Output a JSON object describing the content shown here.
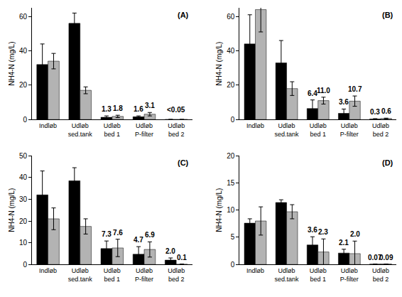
{
  "chart_data": [
    {
      "type": "bar",
      "title": "(A)",
      "y_label": "NH4-N (mg/L)",
      "categories": [
        "Indløb",
        "Udløb\nsed.tank",
        "Udløb\nbed 1",
        "Udløb\nP-filter",
        "Udløb\nbed 2"
      ],
      "series": [
        {
          "color": "#000000",
          "values": [
            32,
            56,
            1.3,
            1.6,
            0.03
          ],
          "errors": [
            12,
            6,
            0.8,
            0.5,
            null
          ],
          "value_labels": [
            null,
            null,
            "1.3",
            "1.6",
            null
          ]
        },
        {
          "color": "#b3b3b3",
          "values": [
            34,
            17,
            1.8,
            3.1,
            0.03
          ],
          "errors": [
            4.5,
            2,
            0.7,
            1,
            null
          ],
          "value_labels": [
            null,
            null,
            "1.8",
            "3.1",
            null
          ]
        }
      ],
      "annotations": [
        {
          "category": "Udløb\nbed 2",
          "text": "<0.05"
        }
      ],
      "ylim": [
        0,
        65
      ],
      "yticks": [
        0,
        20,
        40,
        60
      ],
      "data_labels": true
    },
    {
      "type": "bar",
      "title": "(B)",
      "y_label": "NH4-N (mg/L)",
      "categories": [
        "Indløb",
        "Udløb\nsed.tank",
        "Udløb\nbed 1",
        "Udløb\nP-filter",
        "Udløb\nbed 2"
      ],
      "series": [
        {
          "color": "#000000",
          "values": [
            44,
            33,
            6.4,
            3.6,
            0.3
          ],
          "errors": [
            17,
            13,
            5,
            2.5,
            0.2
          ],
          "value_labels": [
            null,
            null,
            "6.4",
            "3.6",
            "0.3"
          ]
        },
        {
          "color": "#b3b3b3",
          "values": [
            64,
            18,
            11.0,
            10.7,
            0.6
          ],
          "errors": [
            13,
            4,
            2,
            3,
            0.2
          ],
          "value_labels": [
            null,
            null,
            "11.0",
            "10.7",
            "0.6"
          ]
        }
      ],
      "ylim": [
        0,
        65
      ],
      "yticks": [
        0,
        20,
        40,
        60
      ],
      "data_labels": true
    },
    {
      "type": "bar",
      "title": "(C)",
      "y_label": "NH4-N (mg/L)",
      "categories": [
        "Indløb",
        "Udløb\nsed.tank",
        "Udløb\nbed 1",
        "Udløb\nP-filter",
        "Udløb\nbed 2"
      ],
      "series": [
        {
          "color": "#000000",
          "values": [
            32,
            38.5,
            7.3,
            4.7,
            2.0
          ],
          "errors": [
            11,
            6,
            3.5,
            3.5,
            1
          ],
          "value_labels": [
            null,
            null,
            "7.3",
            "4.7",
            "2.0"
          ]
        },
        {
          "color": "#b3b3b3",
          "values": [
            21,
            17.5,
            7.6,
            6.9,
            0.1
          ],
          "errors": [
            5,
            3.5,
            4,
            3.5,
            0.1
          ],
          "value_labels": [
            null,
            null,
            "7.6",
            "6.9",
            "0.1"
          ]
        }
      ],
      "ylim": [
        0,
        50
      ],
      "yticks": [
        0,
        10,
        20,
        30,
        40,
        50
      ],
      "data_labels": true
    },
    {
      "type": "bar",
      "title": "(D)",
      "y_label": "NH4-N (mg/L)",
      "categories": [
        "Indløb",
        "Udløb\nsed.tank",
        "Udløb\nbed 1",
        "Udløb\nP-filter",
        "Udløb\nbed 2"
      ],
      "series": [
        {
          "color": "#000000",
          "values": [
            7.6,
            11.4,
            3.6,
            2.1,
            0.07
          ],
          "errors": [
            0.8,
            0.5,
            1.5,
            0.7,
            null
          ],
          "value_labels": [
            null,
            null,
            "3.6",
            "2.1",
            "0.07"
          ]
        },
        {
          "color": "#b3b3b3",
          "values": [
            8.0,
            9.7,
            2.3,
            2.0,
            0.09
          ],
          "errors": [
            2.6,
            1.3,
            2.4,
            2.3,
            null
          ],
          "value_labels": [
            null,
            null,
            "2.3",
            "2.0",
            "0.09"
          ]
        }
      ],
      "ylim": [
        0,
        20
      ],
      "yticks": [
        0,
        5,
        10,
        15,
        20
      ],
      "data_labels": true
    }
  ]
}
